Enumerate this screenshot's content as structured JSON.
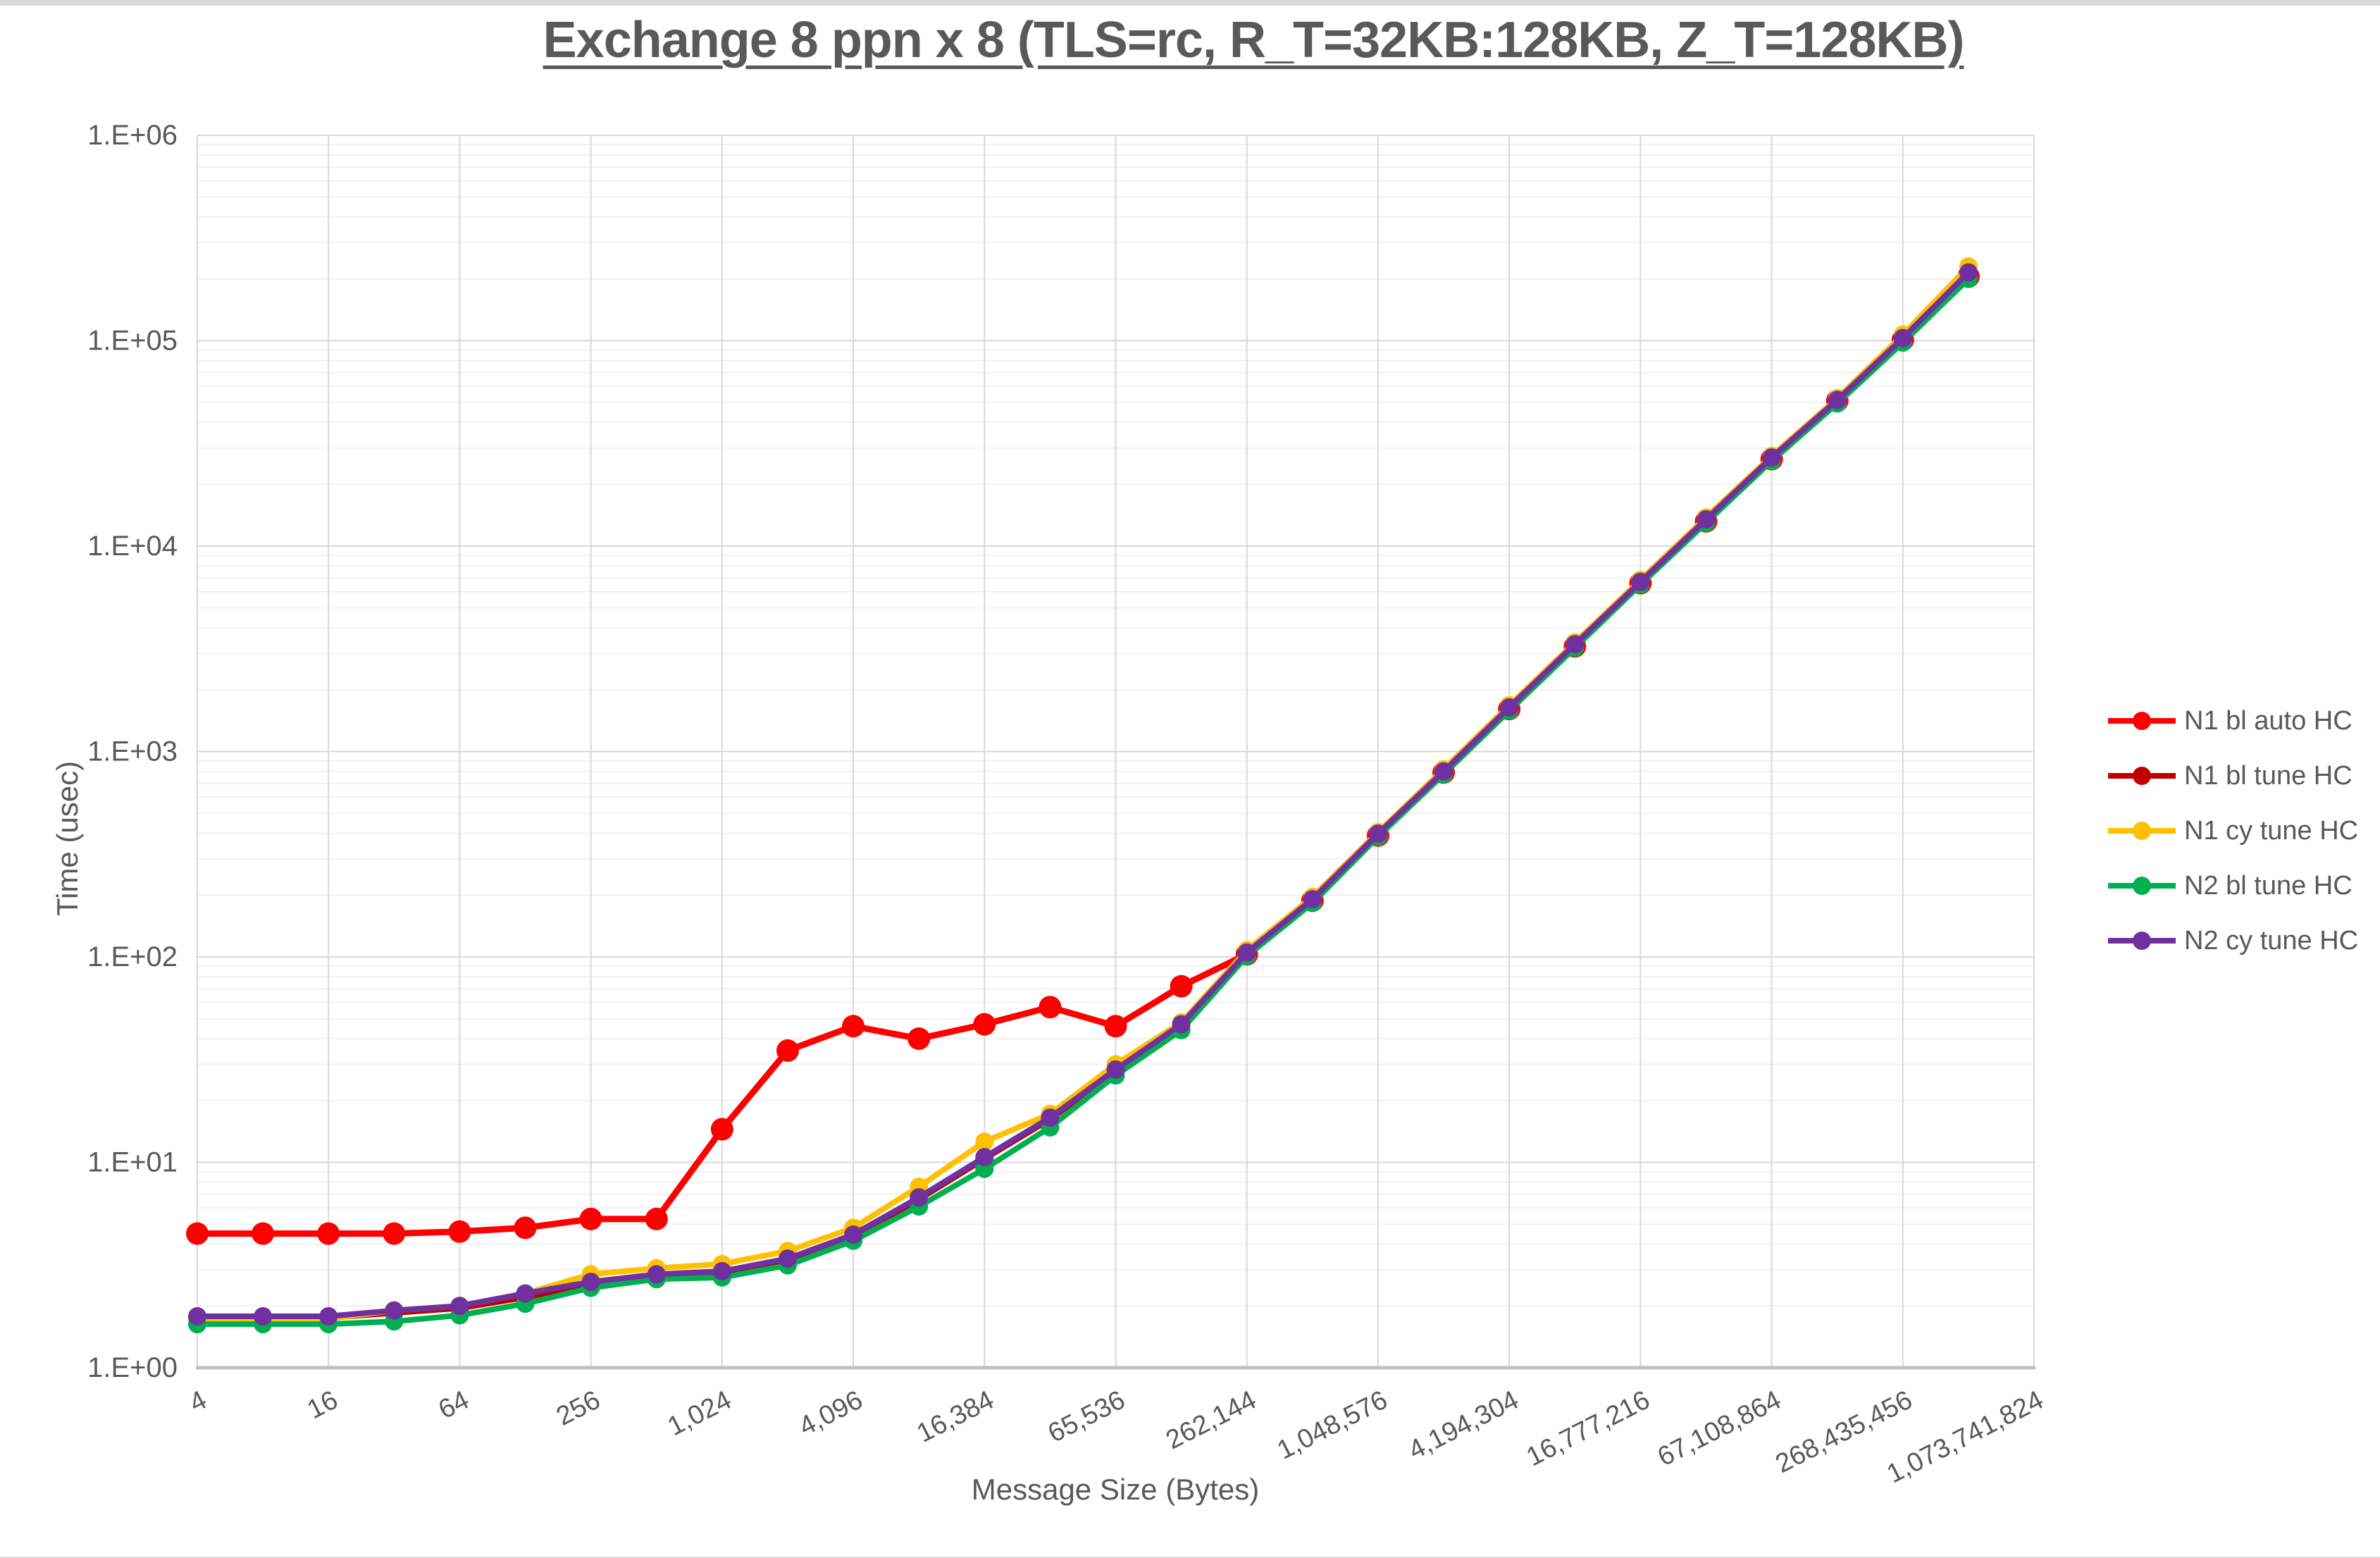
{
  "window": {
    "top_edge": ""
  },
  "chart_data": {
    "type": "line",
    "title": "Exchange 8 ppn x 8 (TLS=rc, R_T=32KB:128KB, Z_T=128KB)",
    "xlabel": "Message Size (Bytes)",
    "ylabel": "Time (usec)",
    "x_scale": "log2 categories (every power of 2)",
    "y_scale": "log10",
    "ylim": [
      "1.E+00",
      "1.E+06"
    ],
    "grid": true,
    "legend_position": "right",
    "text_color": "#595959",
    "grid_color_major": "#d9d9d9",
    "grid_color_minor": "#ededed",
    "axis_line_color": "#bfbfbf",
    "y_tick_labels": [
      "1.E+00",
      "1.E+01",
      "1.E+02",
      "1.E+03",
      "1.E+04",
      "1.E+05",
      "1.E+06"
    ],
    "x_tick_labels": [
      "4",
      "16",
      "64",
      "256",
      "1,024",
      "4,096",
      "16,384",
      "65,536",
      "262,144",
      "1,048,576",
      "4,194,304",
      "16,777,216",
      "67,108,864",
      "268,435,456",
      "1,073,741,824"
    ],
    "categories": [
      4,
      8,
      16,
      32,
      64,
      128,
      256,
      512,
      1024,
      2048,
      4096,
      8192,
      16384,
      32768,
      65536,
      131072,
      262144,
      524288,
      1048576,
      2097152,
      4194304,
      8388608,
      16777216,
      33554432,
      67108864,
      134217728,
      268435456,
      536870912,
      1073741824
    ],
    "series": [
      {
        "name": "N1 bl auto HC",
        "color": "#ff0000",
        "values": [
          4.5,
          4.5,
          4.5,
          4.5,
          4.6,
          4.8,
          5.3,
          5.3,
          14.5,
          35,
          46,
          40,
          47,
          57,
          46,
          72,
          103,
          188,
          390,
          790,
          1610,
          3250,
          6600,
          13200,
          26500,
          51000,
          101000,
          205000,
          null
        ]
      },
      {
        "name": "N1 bl tune HC",
        "color": "#c00000",
        "values": [
          1.75,
          1.75,
          1.75,
          1.85,
          1.95,
          2.2,
          2.55,
          2.8,
          2.9,
          3.35,
          4.35,
          6.6,
          10.4,
          16.2,
          27.8,
          46.5,
          104,
          190,
          395,
          795,
          1620,
          3280,
          6650,
          13350,
          26800,
          50500,
          101500,
          212000,
          null
        ]
      },
      {
        "name": "N1 cy tune HC",
        "color": "#ffc000",
        "values": [
          1.72,
          1.72,
          1.73,
          1.9,
          2.0,
          2.3,
          2.85,
          3.05,
          3.2,
          3.7,
          4.8,
          7.6,
          12.6,
          17.2,
          30,
          48,
          108,
          196,
          405,
          820,
          1680,
          3400,
          6850,
          13800,
          27500,
          52500,
          107000,
          230000,
          null
        ]
      },
      {
        "name": "N2 bl tune HC",
        "color": "#00b050",
        "values": [
          1.63,
          1.63,
          1.63,
          1.68,
          1.8,
          2.05,
          2.45,
          2.7,
          2.75,
          3.15,
          4.15,
          6.1,
          9.3,
          14.8,
          26.5,
          44,
          101,
          183,
          385,
          775,
          1580,
          3200,
          6500,
          13000,
          26000,
          49500,
          98000,
          200000,
          null
        ]
      },
      {
        "name": "N2 cy tune HC",
        "color": "#7030a0",
        "values": [
          1.78,
          1.78,
          1.78,
          1.9,
          2.0,
          2.3,
          2.62,
          2.85,
          2.95,
          3.4,
          4.45,
          6.75,
          10.6,
          16.5,
          28.3,
          47,
          105,
          191,
          398,
          800,
          1640,
          3330,
          6700,
          13500,
          27000,
          51500,
          103000,
          215000,
          null
        ]
      }
    ]
  }
}
